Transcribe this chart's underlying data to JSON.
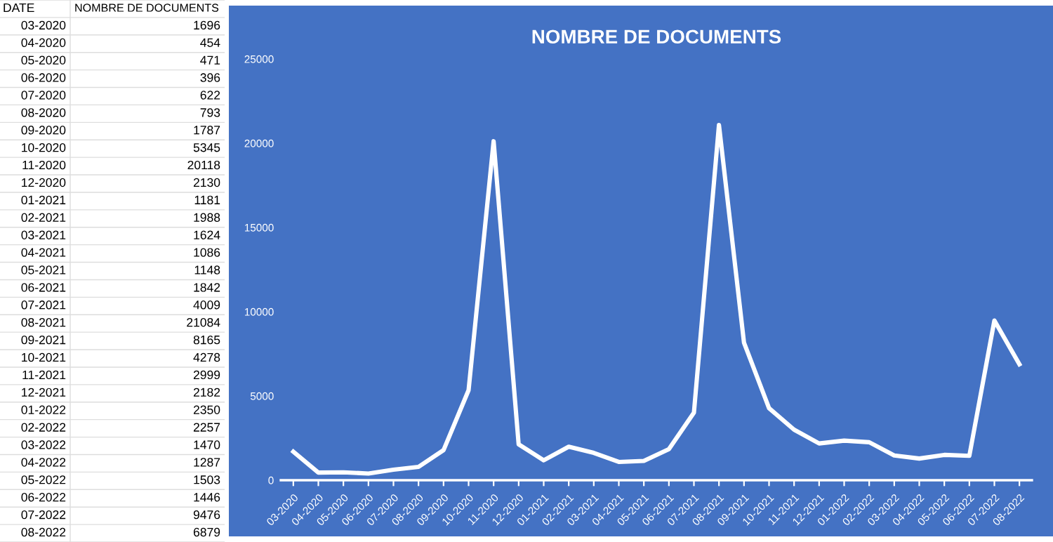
{
  "chart_data": [
    {
      "type": "other",
      "annotations": [
        "DATE",
        "NOMBRE DE DOCUMENTS"
      ],
      "categories": [
        "03-2020",
        "04-2020",
        "05-2020",
        "06-2020",
        "07-2020",
        "08-2020",
        "09-2020",
        "10-2020",
        "11-2020",
        "12-2020",
        "01-2021",
        "02-2021",
        "03-2021",
        "04-2021",
        "05-2021",
        "06-2021",
        "07-2021",
        "08-2021",
        "09-2021",
        "10-2021",
        "11-2021",
        "12-2021",
        "01-2022",
        "02-2022",
        "03-2022",
        "04-2022",
        "05-2022",
        "06-2022",
        "07-2022",
        "08-2022"
      ],
      "value_labels": [
        "1696",
        "454",
        "471",
        "396",
        "622",
        "793",
        "1787",
        "5345",
        "20118",
        "2130",
        "1181",
        "1988",
        "1624",
        "1086",
        "1148",
        "1842",
        "4009",
        "21084",
        "8165",
        "4278",
        "2999",
        "2182",
        "2350",
        "2257",
        "1470",
        "1287",
        "1503",
        "1446",
        "9476",
        "6879"
      ]
    },
    {
      "type": "line",
      "title": "NOMBRE DE DOCUMENTS",
      "categories": [
        "03-2020",
        "04-2020",
        "05-2020",
        "06-2020",
        "07-2020",
        "08-2020",
        "09-2020",
        "10-2020",
        "11-2020",
        "12-2020",
        "01-2021",
        "02-2021",
        "03-2021",
        "04-2021",
        "05-2021",
        "06-2021",
        "07-2021",
        "08-2021",
        "09-2021",
        "10-2021",
        "11-2021",
        "12-2021",
        "01-2022",
        "02-2022",
        "03-2022",
        "04-2022",
        "05-2022",
        "06-2022",
        "07-2022",
        "08-2022"
      ],
      "series": [
        {
          "color": "#ffffff",
          "values": [
            1696,
            454,
            471,
            396,
            622,
            793,
            1787,
            5345,
            20118,
            2130,
            1181,
            1988,
            1624,
            1086,
            1148,
            1842,
            4009,
            21084,
            8165,
            4278,
            2999,
            2182,
            2350,
            2257,
            1470,
            1287,
            1503,
            1446,
            9476,
            6879
          ]
        }
      ],
      "ylim": [
        0,
        25000
      ],
      "yticks": [
        0,
        5000,
        10000,
        15000,
        20000,
        25000
      ],
      "marker": "none",
      "line_style": "solid",
      "grid": false
    }
  ]
}
